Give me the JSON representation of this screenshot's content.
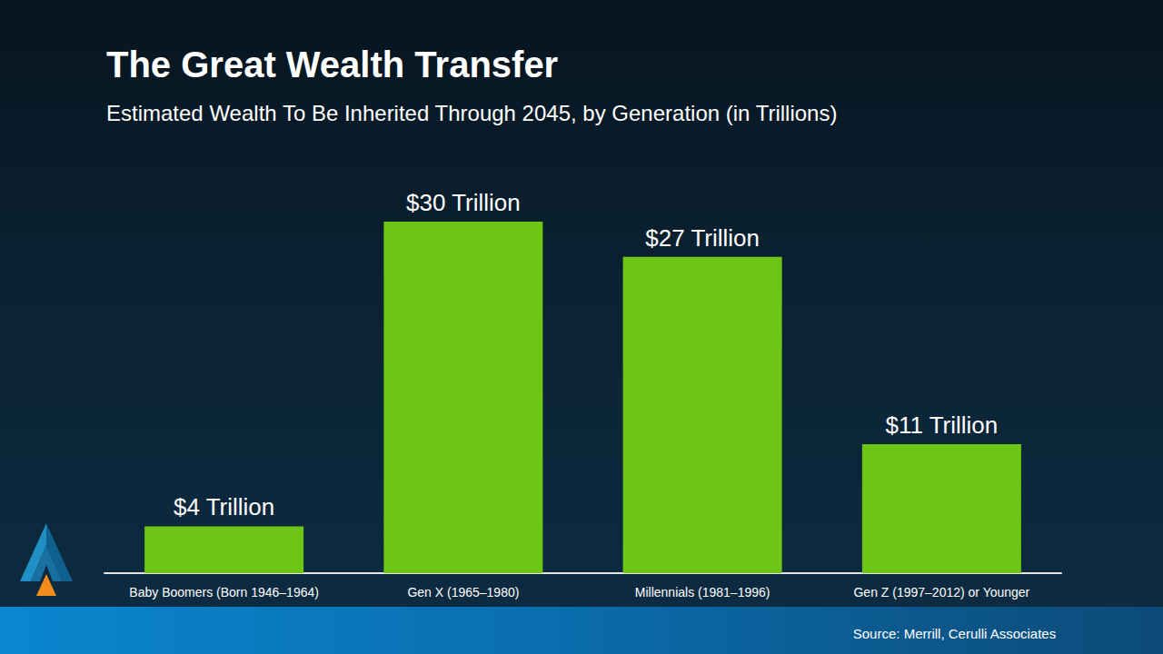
{
  "chart_data": {
    "type": "bar",
    "title": "The Great Wealth Transfer",
    "subtitle": "Estimated Wealth To Be Inherited Through 2045, by Generation (in Trillions)",
    "source": "Source: Merrill, Cerulli Associates",
    "categories": [
      "Baby Boomers (Born 1946–1964)",
      "Gen X (1965–1980)",
      "Millennials (1981–1996)",
      "Gen Z (1997–2012) or Younger"
    ],
    "values": [
      4,
      30,
      27,
      11
    ],
    "value_labels": [
      "$4 Trillion",
      "$30 Trillion",
      "$27 Trillion",
      "$11 Trillion"
    ],
    "color": "#6cc613",
    "ylim": [
      0,
      30
    ],
    "grid": false,
    "data_labels": true,
    "tick_labels": "x"
  }
}
